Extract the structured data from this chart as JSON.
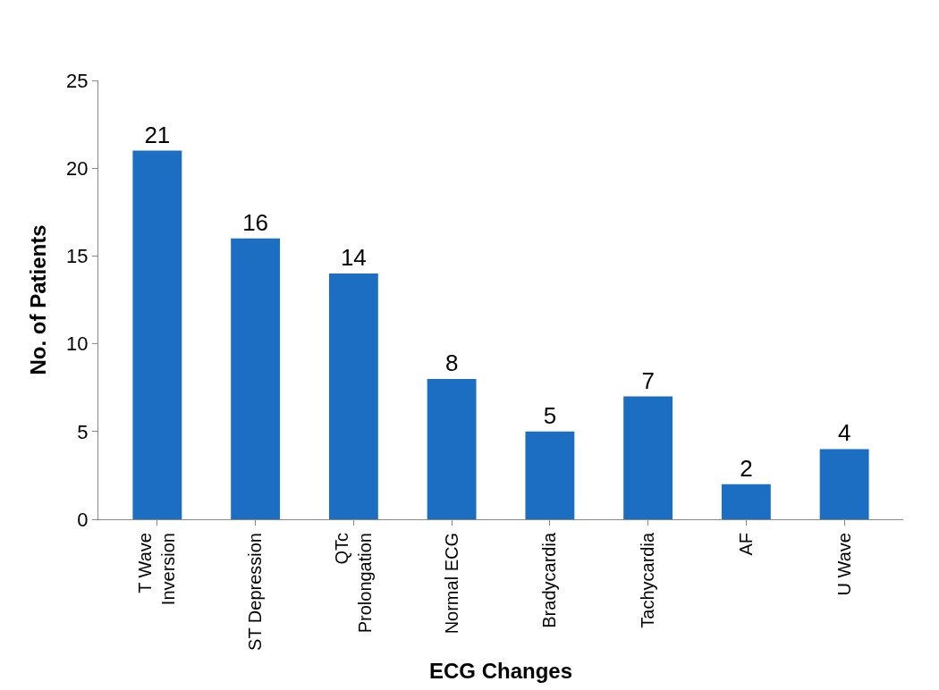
{
  "chart_data": {
    "type": "bar",
    "xlabel": "ECG Changes",
    "ylabel": "No. of Patients",
    "categories": [
      "T Wave Inversion",
      "ST Depression",
      "QTc Prolongation",
      "Normal ECG",
      "Bradycardia",
      "Tachycardia",
      "AF",
      "U Wave"
    ],
    "values": [
      21,
      16,
      14,
      8,
      5,
      7,
      2,
      4
    ],
    "color": "#1b6ec2",
    "ylim": [
      0,
      25
    ],
    "yticks": [
      0,
      5,
      10,
      15,
      20,
      25
    ],
    "data_labels": true
  }
}
